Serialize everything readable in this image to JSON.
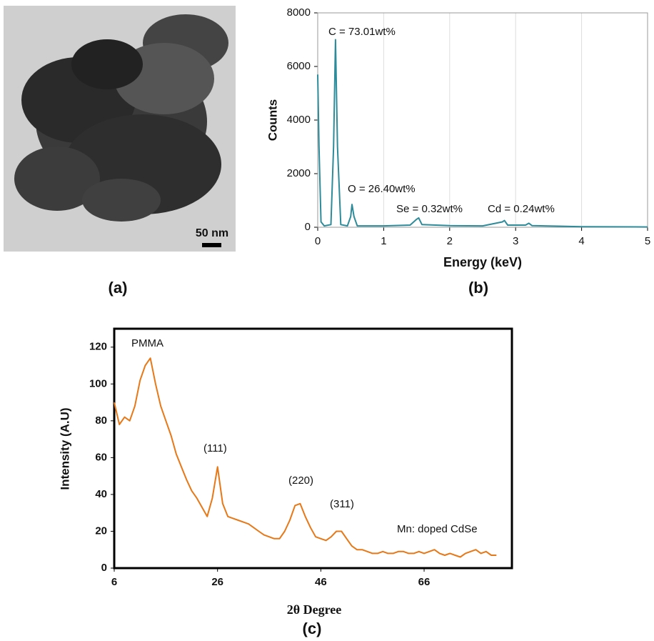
{
  "image_panel": {
    "scale_label": "50 nm",
    "caption": "(a)"
  },
  "chart_data": [
    {
      "type": "line",
      "caption": "(b)",
      "xlabel": "Energy (keV)",
      "ylabel": "Counts",
      "x": [
        0,
        0.02,
        0.05,
        0.1,
        0.2,
        0.24,
        0.27,
        0.3,
        0.35,
        0.45,
        0.5,
        0.52,
        0.55,
        0.6,
        1.0,
        1.4,
        1.5,
        1.53,
        1.58,
        2.0,
        2.5,
        2.8,
        2.83,
        2.88,
        3.15,
        3.2,
        3.25,
        3.65,
        4.0,
        5.0
      ],
      "values": [
        5700,
        3000,
        200,
        50,
        100,
        3000,
        7000,
        3000,
        100,
        50,
        400,
        850,
        400,
        50,
        50,
        80,
        300,
        350,
        100,
        60,
        50,
        200,
        250,
        80,
        80,
        150,
        60,
        40,
        20,
        10
      ],
      "color": "#2e8b9a",
      "xlim": [
        0,
        5
      ],
      "xticks": [
        0,
        1,
        2,
        3,
        4,
        5
      ],
      "ylim": [
        0,
        8000
      ],
      "yticks": [
        0,
        2000,
        4000,
        6000,
        8000
      ],
      "grid": true,
      "annotations": [
        "C = 73.01wt%",
        "O = 26.40wt%",
        "Se = 0.32wt%",
        "Cd = 0.24wt%"
      ]
    },
    {
      "type": "line",
      "caption": "(c)",
      "xlabel": "2θ Degree",
      "ylabel": "Intensity (A.U)",
      "x": [
        6,
        7,
        8,
        9,
        10,
        11,
        12,
        13,
        14,
        15,
        16,
        17,
        18,
        19,
        20,
        21,
        22,
        23,
        24,
        25,
        26,
        27,
        28,
        29,
        30,
        31,
        32,
        33,
        34,
        35,
        36,
        37,
        38,
        39,
        40,
        41,
        42,
        43,
        44,
        45,
        46,
        47,
        48,
        49,
        50,
        51,
        52,
        53,
        54,
        55,
        56,
        57,
        58,
        59,
        60,
        61,
        62,
        63,
        64,
        65,
        66,
        67,
        68,
        69,
        70,
        71,
        72,
        73,
        74,
        75,
        76,
        77,
        78,
        79,
        80
      ],
      "values": [
        90,
        78,
        82,
        80,
        88,
        102,
        110,
        114,
        100,
        88,
        80,
        72,
        62,
        55,
        48,
        42,
        38,
        33,
        28,
        38,
        55,
        35,
        28,
        27,
        26,
        25,
        24,
        22,
        20,
        18,
        17,
        16,
        16,
        20,
        26,
        34,
        35,
        28,
        22,
        17,
        16,
        15,
        17,
        20,
        20,
        16,
        12,
        10,
        10,
        9,
        8,
        8,
        9,
        8,
        8,
        9,
        9,
        8,
        8,
        9,
        8,
        9,
        10,
        8,
        7,
        8,
        7,
        6,
        8,
        9,
        10,
        8,
        9,
        7,
        7
      ],
      "color": "#e87817",
      "xlim": [
        6,
        83
      ],
      "xticks": [
        6,
        26,
        46,
        66
      ],
      "ylim": [
        0,
        130
      ],
      "yticks": [
        0,
        20,
        40,
        60,
        80,
        100,
        120
      ],
      "grid": false,
      "annotations": [
        "PMMA",
        "(111)",
        "(220)",
        "(311)",
        "Mn: doped CdSe"
      ]
    }
  ]
}
